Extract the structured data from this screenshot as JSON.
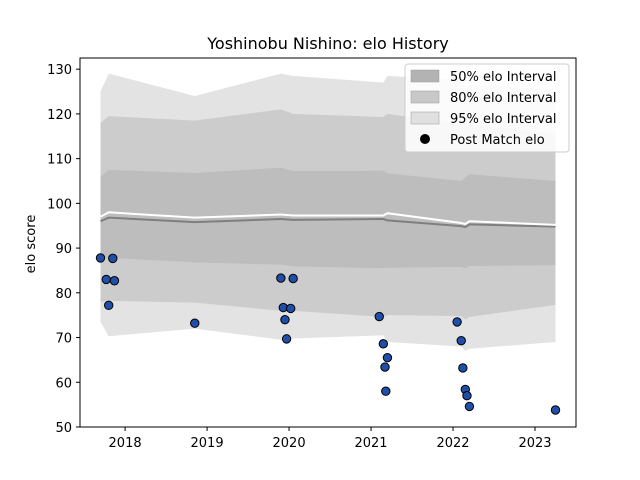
{
  "chart_data": {
    "type": "line",
    "title": "Yoshinobu Nishino: elo History",
    "xlabel": "",
    "ylabel": "elo score",
    "xlim": [
      2017.45,
      2023.5
    ],
    "ylim": [
      50,
      132.5
    ],
    "xticks": [
      2018,
      2019,
      2020,
      2021,
      2022,
      2023
    ],
    "xtick_labels": [
      "2018",
      "2019",
      "2020",
      "2021",
      "2022",
      "2023"
    ],
    "yticks": [
      50,
      60,
      70,
      80,
      90,
      100,
      110,
      120,
      130
    ],
    "ytick_labels": [
      "50",
      "60",
      "70",
      "80",
      "90",
      "100",
      "110",
      "120",
      "130"
    ],
    "grid": false,
    "legend_position": "upper right",
    "legend": [
      {
        "label": "50% elo Interval",
        "kind": "band",
        "color": "#b3b3b3"
      },
      {
        "label": "80% elo Interval",
        "kind": "band",
        "color": "#c8c8c8"
      },
      {
        "label": "95% elo Interval",
        "kind": "band",
        "color": "#e0e0e0"
      },
      {
        "label": "Post Match elo",
        "kind": "marker",
        "color": "#000000"
      }
    ],
    "colors": {
      "band50": "#bdbdbd",
      "band80": "#cccccc",
      "band95": "#e3e3e3",
      "mean_line": "#7f7f7f",
      "upper_line": "#ffffff",
      "marker_fill": "#1f4fa8",
      "marker_edge": "#000000"
    },
    "series": [
      {
        "role": "mean",
        "x": [
          2017.7,
          2017.8,
          2018.85,
          2019.9,
          2020.05,
          2021.15,
          2021.2,
          2022.1,
          2022.15,
          2022.2,
          2023.25
        ],
        "values": [
          96.0,
          96.8,
          95.8,
          96.5,
          96.3,
          96.5,
          96.2,
          94.9,
          94.7,
          95.3,
          94.8
        ]
      },
      {
        "role": "upper_line",
        "x": [
          2017.7,
          2017.8,
          2018.85,
          2019.9,
          2020.05,
          2021.15,
          2021.2,
          2022.1,
          2022.15,
          2022.2,
          2023.25
        ],
        "values": [
          97.0,
          98.0,
          96.8,
          97.5,
          97.3,
          97.3,
          97.8,
          95.6,
          95.4,
          96.0,
          95.2
        ]
      },
      {
        "role": "band50",
        "x": [
          2017.7,
          2017.8,
          2018.85,
          2019.9,
          2020.05,
          2021.15,
          2021.2,
          2022.1,
          2022.15,
          2022.2,
          2023.25
        ],
        "lower": [
          88.0,
          87.8,
          86.8,
          86.3,
          85.9,
          85.5,
          85.6,
          85.8,
          85.5,
          86.0,
          86.2
        ],
        "upper": [
          106.0,
          107.5,
          106.8,
          108.0,
          107.2,
          107.3,
          106.7,
          105.0,
          105.8,
          106.5,
          105.0
        ]
      },
      {
        "role": "band80",
        "x": [
          2017.7,
          2017.8,
          2018.85,
          2019.9,
          2020.05,
          2021.15,
          2021.2,
          2022.1,
          2022.15,
          2022.2,
          2023.25
        ],
        "lower": [
          78.0,
          78.2,
          77.8,
          76.0,
          76.0,
          74.6,
          75.0,
          74.8,
          74.0,
          74.6,
          77.3
        ],
        "upper": [
          118.0,
          119.5,
          118.5,
          121.0,
          120.0,
          119.3,
          120.0,
          117.7,
          117.0,
          117.7,
          115.5
        ]
      },
      {
        "role": "band95",
        "x": [
          2017.7,
          2017.8,
          2018.85,
          2019.9,
          2020.05,
          2021.15,
          2021.2,
          2022.1,
          2022.15,
          2022.2,
          2023.25
        ],
        "lower": [
          73.5,
          70.3,
          72.0,
          69.5,
          69.8,
          70.5,
          69.0,
          68.0,
          67.0,
          67.5,
          69.0
        ],
        "upper": [
          125.0,
          129.0,
          124.0,
          129.0,
          128.5,
          127.0,
          128.5,
          127.5,
          125.5,
          126.5,
          125.5
        ]
      },
      {
        "name": "Post Match elo",
        "role": "points",
        "x": [
          2017.7,
          2017.77,
          2017.8,
          2017.85,
          2017.87,
          2018.85,
          2019.9,
          2019.93,
          2019.95,
          2019.97,
          2020.02,
          2020.05,
          2021.1,
          2021.15,
          2021.17,
          2021.18,
          2021.2,
          2022.05,
          2022.1,
          2022.12,
          2022.15,
          2022.17,
          2022.2,
          2023.25
        ],
        "values": [
          87.8,
          83.0,
          77.2,
          87.7,
          82.7,
          73.2,
          83.3,
          76.7,
          74.0,
          69.7,
          76.5,
          83.2,
          74.7,
          68.6,
          63.4,
          58.0,
          65.5,
          73.5,
          69.3,
          63.2,
          58.4,
          57.0,
          54.6,
          53.8
        ]
      }
    ]
  }
}
